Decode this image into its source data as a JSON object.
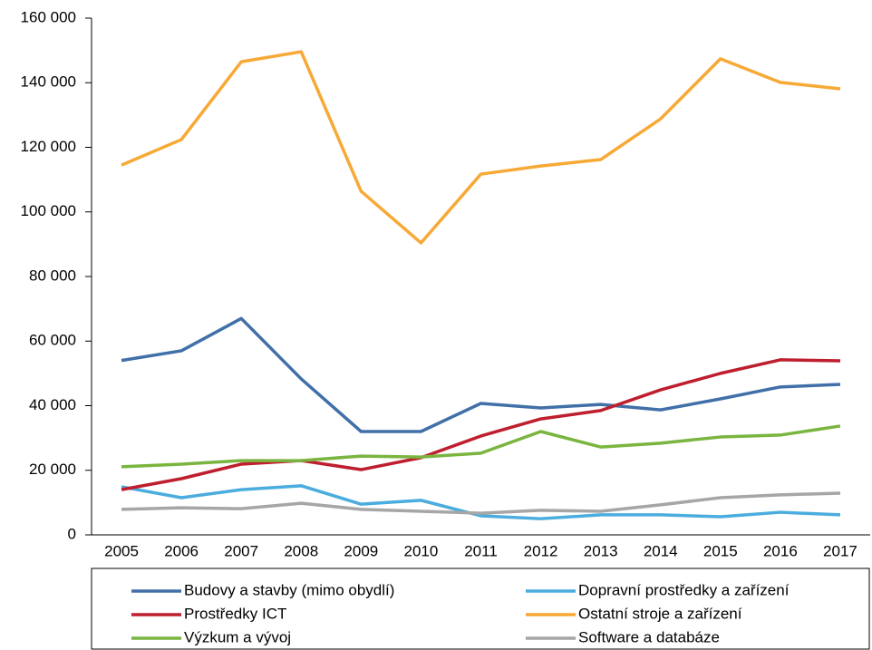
{
  "chart_data": {
    "type": "line",
    "categories": [
      "2005",
      "2006",
      "2007",
      "2008",
      "2009",
      "2010",
      "2011",
      "2012",
      "2013",
      "2014",
      "2015",
      "2016",
      "2017"
    ],
    "ylim": [
      0,
      160000
    ],
    "yticks": [
      0,
      {
        "value": 20000,
        "label": "20 000"
      },
      {
        "value": 40000,
        "label": "40 000"
      },
      {
        "value": 60000,
        "label": "60 000"
      },
      {
        "value": 80000,
        "label": "80 000"
      },
      {
        "value": 100000,
        "label": "100 000"
      },
      {
        "value": 120000,
        "label": "120 000"
      },
      {
        "value": 140000,
        "label": "140 000"
      },
      {
        "value": 160000,
        "label": "160 000"
      }
    ],
    "series": [
      {
        "name": "Budovy a stavby (mimo obydlí)",
        "color": "#4170a8",
        "values": [
          54000,
          57000,
          67000,
          48300,
          32000,
          32000,
          40700,
          39300,
          40400,
          38700,
          42100,
          45800,
          46600
        ]
      },
      {
        "name": "Dopravní prostředky a zařízení",
        "color": "#4bacde",
        "values": [
          14900,
          11500,
          14000,
          15200,
          9500,
          10700,
          5900,
          5000,
          6200,
          6200,
          5600,
          7000,
          6200
        ]
      },
      {
        "name": "Prostředky ICT",
        "color": "#be1e2d",
        "values": [
          14000,
          17400,
          21900,
          23000,
          20200,
          23900,
          30600,
          35900,
          38500,
          44900,
          50000,
          54200,
          53900
        ]
      },
      {
        "name": "Ostatní stroje a zařízení",
        "color": "#f7a935",
        "values": [
          114500,
          122400,
          146500,
          149600,
          106400,
          90400,
          111700,
          114200,
          116200,
          128800,
          147400,
          140100,
          138100
        ]
      },
      {
        "name": "Výzkum a vývoj",
        "color": "#7ab540",
        "values": [
          21100,
          21900,
          23000,
          23000,
          24400,
          24100,
          25300,
          32000,
          27200,
          28400,
          30300,
          30900,
          33700
        ]
      },
      {
        "name": "Software a databáze",
        "color": "#a6a6a6",
        "values": [
          7900,
          8400,
          8100,
          9800,
          7900,
          7300,
          6700,
          7600,
          7300,
          9300,
          11500,
          12400,
          12900
        ]
      }
    ]
  }
}
